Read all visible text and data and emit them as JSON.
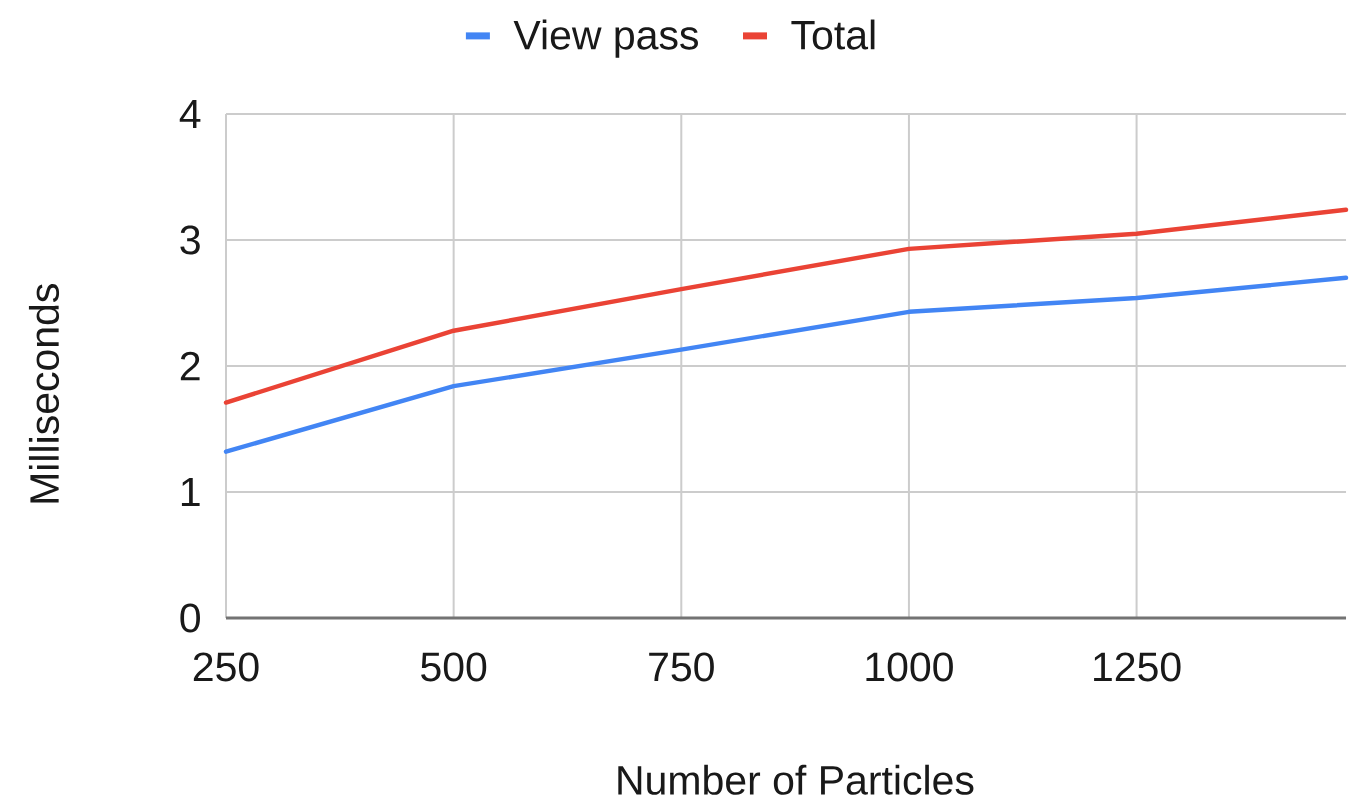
{
  "chart_data": {
    "type": "line",
    "xlabel": "Number of Particles",
    "ylabel": "Milliseconds",
    "x": [
      250,
      500,
      750,
      1000,
      1250,
      1480
    ],
    "series": [
      {
        "name": "View pass",
        "color": "#4285f4",
        "values": [
          1.32,
          1.84,
          2.13,
          2.43,
          2.54,
          2.7
        ]
      },
      {
        "name": "Total",
        "color": "#ea4335",
        "values": [
          1.71,
          2.28,
          2.61,
          2.93,
          3.05,
          3.24
        ]
      }
    ],
    "xlim": [
      250,
      1480
    ],
    "xticks": [
      250,
      500,
      750,
      1000,
      1250
    ],
    "ylim": [
      0,
      4
    ],
    "yticks": [
      0,
      1,
      2,
      3,
      4
    ],
    "grid": true,
    "legend": "top",
    "marker": "none",
    "line_style": "solid"
  }
}
